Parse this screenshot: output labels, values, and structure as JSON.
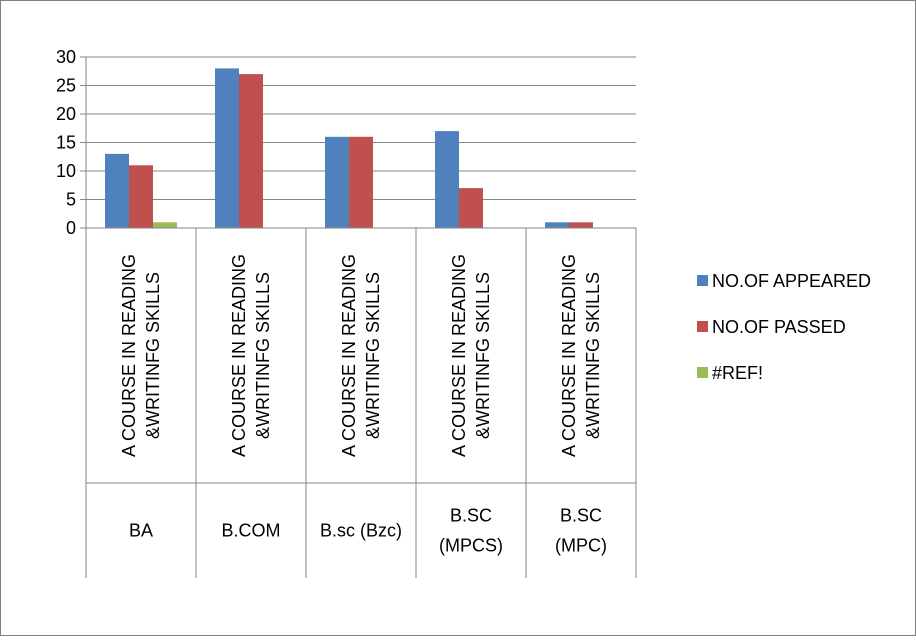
{
  "chart_data": {
    "type": "bar",
    "title": "",
    "xlabel": "",
    "ylabel": "",
    "ylim": [
      0,
      30
    ],
    "yticks": [
      0,
      5,
      10,
      15,
      20,
      25,
      30
    ],
    "grid": true,
    "legend_position": "right",
    "categories": [
      {
        "sub": "A COURSE IN READING &WRITINFG SKILLS",
        "sub_lines": [
          "A COURSE IN READING",
          "&WRITINFG SKILLS"
        ],
        "group": "BA",
        "group_lines": [
          "BA"
        ]
      },
      {
        "sub": "A COURSE IN READING &WRITINFG SKILLS",
        "sub_lines": [
          "A COURSE IN READING",
          "&WRITINFG SKILLS"
        ],
        "group": "B.COM",
        "group_lines": [
          "B.COM"
        ]
      },
      {
        "sub": "A COURSE IN READING &WRITINFG SKILLS",
        "sub_lines": [
          "A COURSE IN READING",
          "&WRITINFG SKILLS"
        ],
        "group": "B.sc (Bzc)",
        "group_lines": [
          "B.sc (Bzc)"
        ]
      },
      {
        "sub": "A COURSE IN READING &WRITINFG SKILLS",
        "sub_lines": [
          "A COURSE IN READING",
          "&WRITINFG SKILLS"
        ],
        "group": "B.SC (MPCS)",
        "group_lines": [
          "B.SC",
          "(MPCS)"
        ]
      },
      {
        "sub": "A COURSE IN READING &WRITINFG SKILLS",
        "sub_lines": [
          "A COURSE IN READING",
          "&WRITINFG SKILLS"
        ],
        "group": "B.SC (MPC)",
        "group_lines": [
          "B.SC",
          "(MPC)"
        ]
      }
    ],
    "series": [
      {
        "name": "NO.OF APPEARED",
        "color": "#4F81BD",
        "values": [
          13,
          28,
          16,
          17,
          1
        ]
      },
      {
        "name": "NO.OF PASSED",
        "color": "#C0504D",
        "values": [
          11,
          27,
          16,
          7,
          1
        ]
      },
      {
        "name": "#REF!",
        "color": "#9BBB59",
        "values": [
          1,
          0,
          0,
          0,
          0
        ]
      }
    ]
  }
}
